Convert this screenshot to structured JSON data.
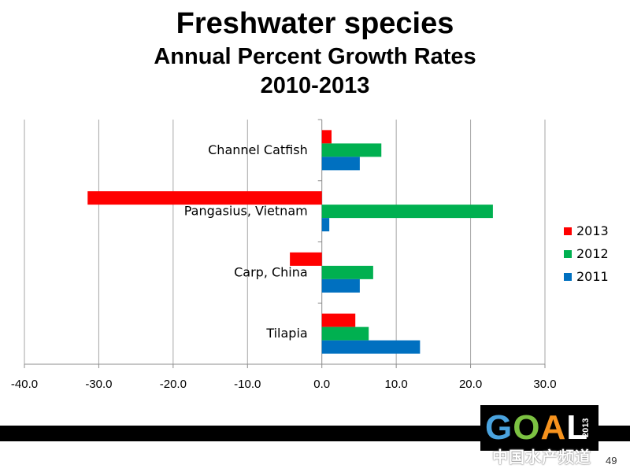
{
  "slide": {
    "title_line1": "Freshwater species",
    "title_line2": "Annual Percent Growth Rates",
    "title_line3": "2010-2013",
    "page_number": "49",
    "logo_text": "GOAL",
    "logo_year": "2013",
    "watermark_text": "中国水产频道"
  },
  "chart_data": {
    "type": "bar",
    "orientation": "horizontal",
    "categories": [
      "Channel Catfish",
      "Pangasius, Vietnam",
      "Carp, China",
      "Tilapia"
    ],
    "series": [
      {
        "name": "2013",
        "color": "#ff0000",
        "values": [
          1.3,
          -31.5,
          -4.3,
          4.5
        ]
      },
      {
        "name": "2012",
        "color": "#00b050",
        "values": [
          8.0,
          23.0,
          6.9,
          6.3
        ]
      },
      {
        "name": "2011",
        "color": "#0070c0",
        "values": [
          5.1,
          1.0,
          5.1,
          13.2
        ]
      }
    ],
    "xlim": [
      -40,
      30
    ],
    "xticks": [
      "-40.0",
      "-30.0",
      "-20.0",
      "-10.0",
      "0.0",
      "10.0",
      "20.0",
      "30.0"
    ],
    "xtick_values": [
      -40,
      -30,
      -20,
      -10,
      0,
      10,
      20,
      30
    ],
    "grid": "vertical",
    "legend_position": "right"
  }
}
